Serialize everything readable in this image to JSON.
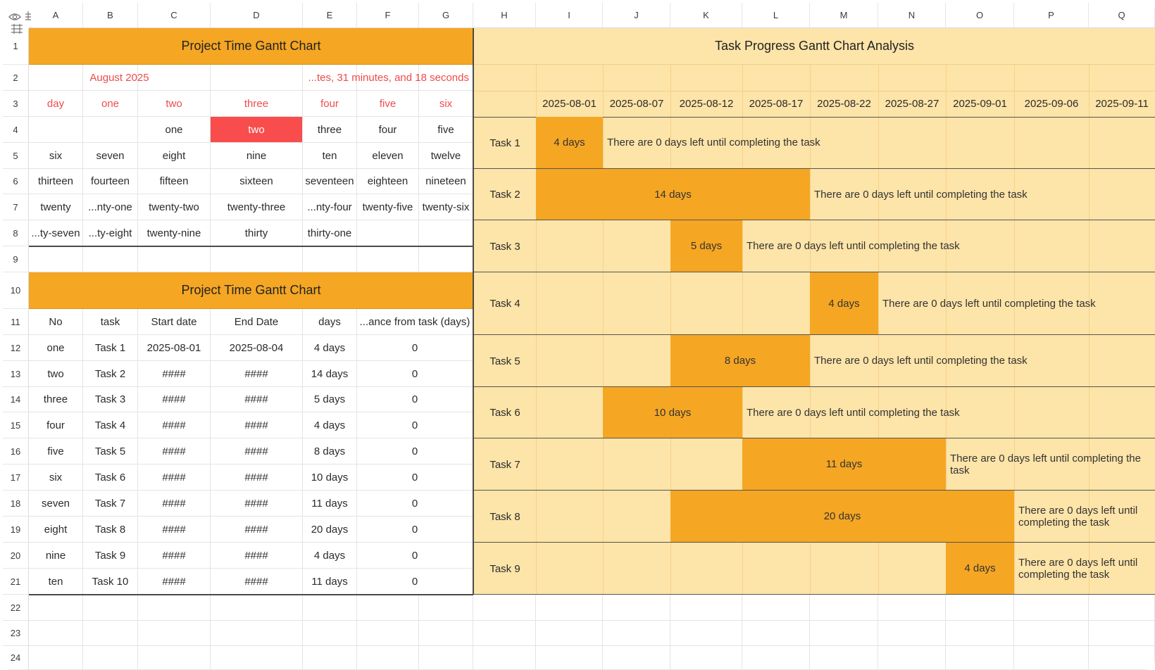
{
  "columns": [
    "A",
    "B",
    "C",
    "D",
    "E",
    "F",
    "G",
    "H",
    "I",
    "J",
    "K",
    "L",
    "M",
    "N",
    "O",
    "P",
    "Q"
  ],
  "rows": [
    "1",
    "2",
    "3",
    "4",
    "5",
    "6",
    "7",
    "8",
    "9",
    "10",
    "11",
    "12",
    "13",
    "14",
    "15",
    "16",
    "17",
    "18",
    "19",
    "20",
    "21",
    "22",
    "23",
    "24"
  ],
  "calendar": {
    "title": "Project Time Gantt Chart",
    "month": "August 2025",
    "countdown": "...tes, 31 minutes, and 18 seconds",
    "weekday_headers": [
      "day",
      "one",
      "two",
      "three",
      "four",
      "five",
      "six"
    ],
    "weeks": [
      [
        "",
        "",
        "one",
        "two",
        "three",
        "four",
        "five"
      ],
      [
        "six",
        "seven",
        "eight",
        "nine",
        "ten",
        "eleven",
        "twelve"
      ],
      [
        "thirteen",
        "fourteen",
        "fifteen",
        "sixteen",
        "seventeen",
        "eighteen",
        "nineteen"
      ],
      [
        "twenty",
        "...nty-one",
        "twenty-two",
        "twenty-three",
        "...nty-four",
        "twenty-five",
        "twenty-six"
      ],
      [
        "...ty-seven",
        "...ty-eight",
        "twenty-nine",
        "thirty",
        "thirty-one",
        "",
        ""
      ]
    ],
    "highlight_color": "#f94c4c"
  },
  "task_table": {
    "title": "Project Time Gantt Chart",
    "headers": [
      "No",
      "task",
      "Start date",
      "End Date",
      "days",
      "...ance from task (days)"
    ],
    "rows": [
      [
        "one",
        "Task 1",
        "2025-08-01",
        "2025-08-04",
        "4 days",
        "0"
      ],
      [
        "two",
        "Task 2",
        "####",
        "####",
        "14 days",
        "0"
      ],
      [
        "three",
        "Task 3",
        "####",
        "####",
        "5 days",
        "0"
      ],
      [
        "four",
        "Task 4",
        "####",
        "####",
        "4 days",
        "0"
      ],
      [
        "five",
        "Task 5",
        "####",
        "####",
        "8 days",
        "0"
      ],
      [
        "six",
        "Task 6",
        "####",
        "####",
        "10 days",
        "0"
      ],
      [
        "seven",
        "Task 7",
        "####",
        "####",
        "11 days",
        "0"
      ],
      [
        "eight",
        "Task 8",
        "####",
        "####",
        "20 days",
        "0"
      ],
      [
        "nine",
        "Task 9",
        "####",
        "####",
        "4 days",
        "0"
      ],
      [
        "ten",
        "Task 10",
        "####",
        "####",
        "11 days",
        "0"
      ]
    ]
  },
  "gantt": {
    "title": "Task Progress Gantt Chart Analysis",
    "dates": [
      "2025-08-01",
      "2025-08-07",
      "2025-08-12",
      "2025-08-17",
      "2025-08-22",
      "2025-08-27",
      "2025-09-01",
      "2025-09-06",
      "2025-09-11"
    ],
    "colors": {
      "bar": "#f5a623",
      "background": "#fde4a8",
      "title_bar": "#f5a623"
    },
    "tasks": [
      {
        "label": "Task 1",
        "start_col": 0,
        "span_cols": 1,
        "bar_text": "4 days",
        "note": "There are 0 days left until completing the task"
      },
      {
        "label": "Task 2",
        "start_col": 0,
        "span_cols": 4,
        "bar_text": "14 days",
        "note": "There are 0 days left until completing the task"
      },
      {
        "label": "Task 3",
        "start_col": 2,
        "span_cols": 1,
        "bar_text": "5 days",
        "note": "There are 0 days left until completing the task"
      },
      {
        "label": "Task 4",
        "start_col": 4,
        "span_cols": 1,
        "bar_text": "4 days",
        "note": "There are 0 days left until completing the task"
      },
      {
        "label": "Task 5",
        "start_col": 2,
        "span_cols": 2,
        "bar_text": "8 days",
        "note": "There are 0 days left until completing the task"
      },
      {
        "label": "Task 6",
        "start_col": 1,
        "span_cols": 2,
        "bar_text": "10 days",
        "note": "There are 0 days left until completing the task"
      },
      {
        "label": "Task 7",
        "start_col": 3,
        "span_cols": 3,
        "bar_text": "11 days",
        "note": "There are 0 days left until completing the task"
      },
      {
        "label": "Task 8",
        "start_col": 2,
        "span_cols": 5,
        "bar_text": "20 days",
        "note": "There are 0 days left until completing the task"
      },
      {
        "label": "Task 9",
        "start_col": 6,
        "span_cols": 1,
        "bar_text": "4 days",
        "note": "There are 0 days left until completing the task"
      }
    ]
  },
  "icons": [
    "eye-icon",
    "freeze-panes-icon",
    "grid-icon"
  ]
}
